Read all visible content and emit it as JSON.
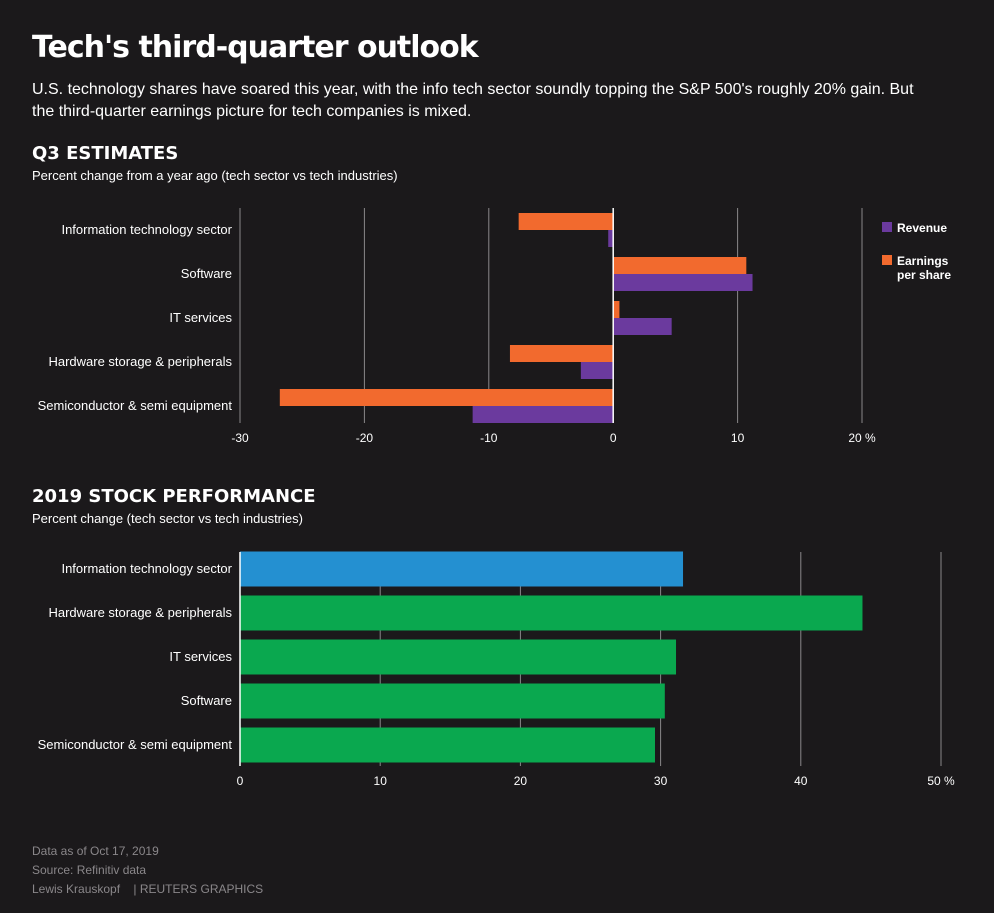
{
  "title": "Tech's third-quarter outlook",
  "subtitle": "U.S. technology shares have soared this year, with the info tech sector soundly topping the S&P 500's roughly 20% gain. But the third-quarter earnings picture for tech companies is mixed.",
  "sections": {
    "q3": {
      "heading": "Q3 ESTIMATES",
      "subheading": "Percent change from a year ago (tech sector vs tech industries)"
    },
    "stock": {
      "heading": "2019 STOCK PERFORMANCE",
      "subheading": "Percent change (tech sector vs tech industries)"
    }
  },
  "chart_data": [
    {
      "type": "bar",
      "orientation": "horizontal",
      "categories": [
        "Information technology sector",
        "Software",
        "IT services",
        "Hardware storage & peripherals",
        "Semiconductor & semi equipment"
      ],
      "series": [
        {
          "name": "Earnings per share",
          "legend_lines": [
            "Earnings",
            "per share"
          ],
          "color": "#f26a2e",
          "values": [
            -7.6,
            10.7,
            0.5,
            -8.3,
            -26.8
          ]
        },
        {
          "name": "Revenue",
          "legend_lines": [
            "Revenue"
          ],
          "color": "#6b3a9e",
          "values": [
            -0.4,
            11.2,
            4.7,
            -2.6,
            -11.3
          ]
        }
      ],
      "xlim": [
        -30,
        20
      ],
      "ticks": [
        -30,
        -20,
        -10,
        0,
        10,
        20
      ],
      "tick_labels": [
        "-30",
        "-20",
        "-10",
        "0",
        "10",
        "20 %"
      ],
      "grid": true,
      "legend": "right"
    },
    {
      "type": "bar",
      "orientation": "horizontal",
      "categories": [
        "Information technology sector",
        "Hardware storage & peripherals",
        "IT services",
        "Software",
        "Semiconductor & semi equipment"
      ],
      "values": [
        31.6,
        44.4,
        31.1,
        30.3,
        29.6
      ],
      "colors": [
        "#2490d1",
        "#0aa84f",
        "#0aa84f",
        "#0aa84f",
        "#0aa84f"
      ],
      "xlim": [
        0,
        50
      ],
      "ticks": [
        0,
        10,
        20,
        30,
        40,
        50
      ],
      "tick_labels": [
        "0",
        "10",
        "20",
        "30",
        "40",
        "50 %"
      ],
      "grid": true
    }
  ],
  "footer": {
    "date": "Data as of Oct 17, 2019",
    "source": "Source: Refinitiv data",
    "credit": "Lewis Krauskopf    | REUTERS GRAPHICS"
  }
}
